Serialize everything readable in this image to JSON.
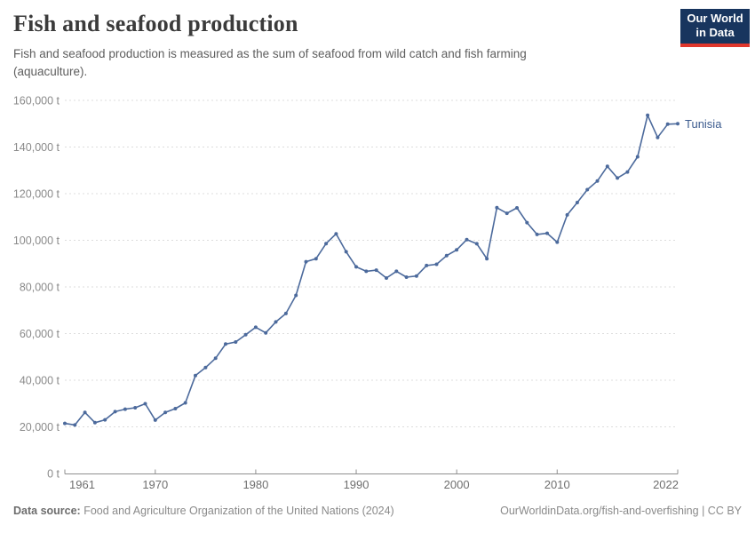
{
  "header": {
    "title": "Fish and seafood production",
    "subtitle": "Fish and seafood production is measured as the sum of seafood from wild catch and fish farming (aquaculture).",
    "logo": {
      "line1": "Our World",
      "line2": "in Data"
    }
  },
  "chart_data": {
    "type": "line",
    "title": "Fish and seafood production",
    "unit": "t",
    "xlabel": "",
    "ylabel": "",
    "xlim": [
      1961,
      2022
    ],
    "ylim": [
      0,
      160000
    ],
    "grid": "horizontal dashed",
    "legend_position": "end-of-line label",
    "xticks": [
      1961,
      1970,
      1980,
      1990,
      2000,
      2010,
      2022
    ],
    "yticks": [
      {
        "value": 0,
        "label": "0 t"
      },
      {
        "value": 20000,
        "label": "20,000 t"
      },
      {
        "value": 40000,
        "label": "40,000 t"
      },
      {
        "value": 60000,
        "label": "60,000 t"
      },
      {
        "value": 80000,
        "label": "80,000 t"
      },
      {
        "value": 100000,
        "label": "100,000 t"
      },
      {
        "value": 120000,
        "label": "120,000 t"
      },
      {
        "value": 140000,
        "label": "140,000 t"
      },
      {
        "value": 160000,
        "label": "160,000 t"
      }
    ],
    "x": [
      1961,
      1962,
      1963,
      1964,
      1965,
      1966,
      1967,
      1968,
      1969,
      1970,
      1971,
      1972,
      1973,
      1974,
      1975,
      1976,
      1977,
      1978,
      1979,
      1980,
      1981,
      1982,
      1983,
      1984,
      1985,
      1986,
      1987,
      1988,
      1989,
      1990,
      1991,
      1992,
      1993,
      1994,
      1995,
      1996,
      1997,
      1998,
      1999,
      2000,
      2001,
      2002,
      2003,
      2004,
      2005,
      2006,
      2007,
      2008,
      2009,
      2010,
      2011,
      2012,
      2013,
      2014,
      2015,
      2016,
      2017,
      2018,
      2019,
      2020,
      2021,
      2022
    ],
    "series": [
      {
        "name": "Tunisia",
        "values": [
          21500,
          20800,
          26200,
          21800,
          23000,
          26500,
          27600,
          28200,
          29900,
          22900,
          26200,
          27800,
          30300,
          42000,
          45400,
          49400,
          55500,
          56400,
          59500,
          62700,
          60300,
          65000,
          68600,
          76400,
          90800,
          92100,
          98600,
          102800,
          95100,
          88600,
          86700,
          87200,
          83800,
          86700,
          84200,
          84700,
          89200,
          89700,
          93400,
          95900,
          100300,
          98500,
          92100,
          114000,
          111600,
          113900,
          107600,
          102500,
          103000,
          99200,
          110900,
          116200,
          121700,
          125400,
          131700,
          126700,
          129300,
          135800,
          153600,
          144100,
          149800,
          150000
        ]
      }
    ]
  },
  "colors": {
    "line": "#4C6A9C",
    "entity_label": "#3d5c8f",
    "grid": "#dddddd",
    "axis": "#8f8f8f",
    "y_tick_text": "#8a8a8a",
    "x_tick_text": "#6f6f6f",
    "logo_bg": "#18355e",
    "logo_stripe": "#e0372c"
  },
  "footer": {
    "source_label": "Data source:",
    "source_text": " Food and Agriculture Organization of the United Nations (2024)",
    "link": "OurWorldinData.org/fish-and-overfishing",
    "separator": " | ",
    "license": "CC BY"
  }
}
